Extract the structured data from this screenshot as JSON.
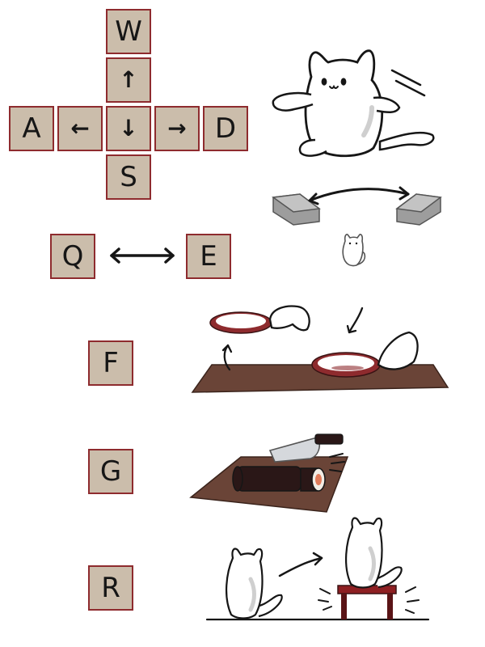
{
  "keys": {
    "w": "W",
    "a": "A",
    "s": "S",
    "d": "D",
    "up": "↑",
    "left": "←",
    "down": "↓",
    "right": "→",
    "q": "Q",
    "e": "E",
    "f": "F",
    "g": "G",
    "r": "R"
  },
  "icons": {
    "move": "cat-moving-icon",
    "rotate": "camera-rotate-icon",
    "plate": "plate-pickup-icon",
    "cut": "knife-cut-sushi-icon",
    "stool": "cat-jump-stool-icon"
  },
  "colors": {
    "key_fill": "#cbbdab",
    "key_border": "#8e2b2e",
    "ink": "#161616",
    "table": "#6a4437",
    "plate_rim": "#8e2b2e",
    "stool": "#8e1f22"
  }
}
